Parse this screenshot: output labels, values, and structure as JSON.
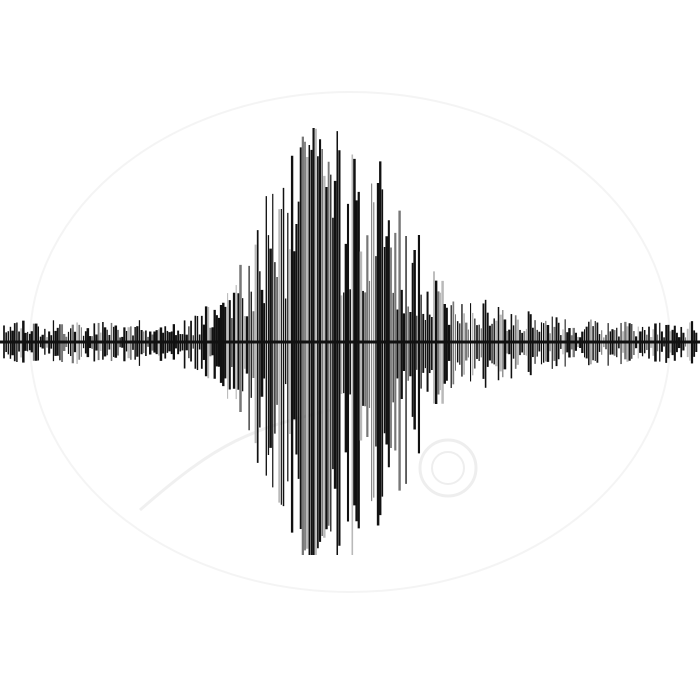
{
  "image": {
    "subject": "audio waveform",
    "background": "#ffffff",
    "colors": {
      "dark": "#111111",
      "mid": "#777777",
      "light": "#b9b9b9",
      "watermark": "#ececec"
    }
  }
}
